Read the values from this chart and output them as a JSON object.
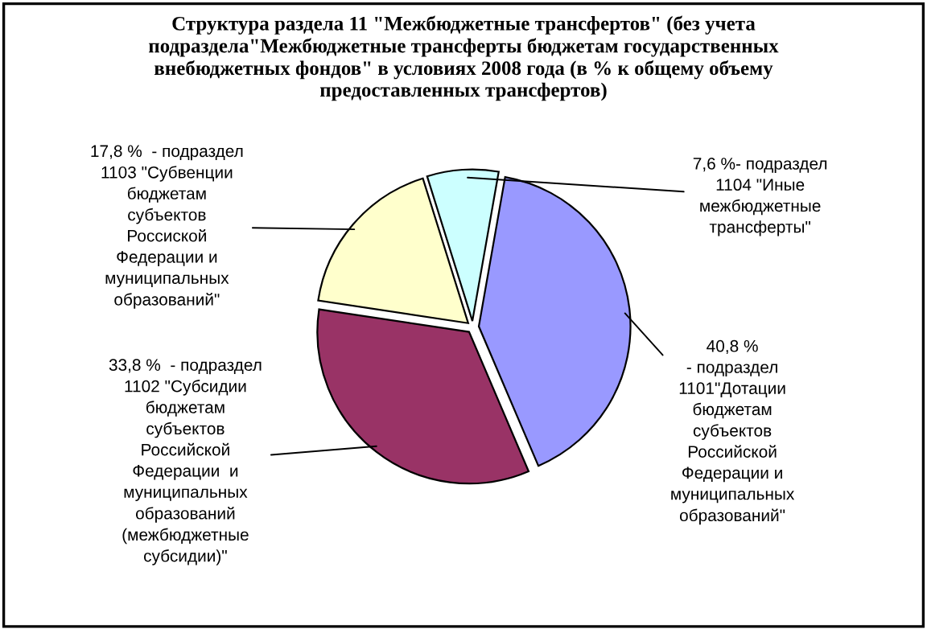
{
  "chart_data": {
    "type": "pie",
    "title": "Структура раздела 11 \"Межбюджетные трансфертов\" (без учета\nподраздела\"Межбюджетные трансферты бюджетам государственных\nвнебюджетных фондов\" в условиях 2008 года (в % к общему объему\nпредоставленных трансфертов)",
    "categories": [
      "\n- подраздел\n1101\"Дотации\nбюджетам\nсубъектов\nРоссийской\nФедерации и\nмуниципальных\nобразований\"",
      "  - подраздел\n1102 \"Субсидии\nбюджетам\nсубъектов\nРоссийской\nФедерации  и\nмуниципальных\nобразований\n(межбюджетные\nсубсидии)\"",
      "  - подраздел\n1103 \"Субвенции\nбюджетам\nсубъектов\nРоссиской\nФедерации и\nмуниципальных\nобразований\"",
      "- подраздел\n1104 \"Иные\nмежбюджетные\nтрансферты\""
    ],
    "values": [
      40.8,
      33.8,
      17.8,
      7.6
    ],
    "value_labels": [
      "40,8 %",
      "33,8 %",
      "17,8 %",
      "7,6 %"
    ],
    "colors": [
      "#9999ff",
      "#993366",
      "#ffffcc",
      "#ccffff"
    ]
  }
}
